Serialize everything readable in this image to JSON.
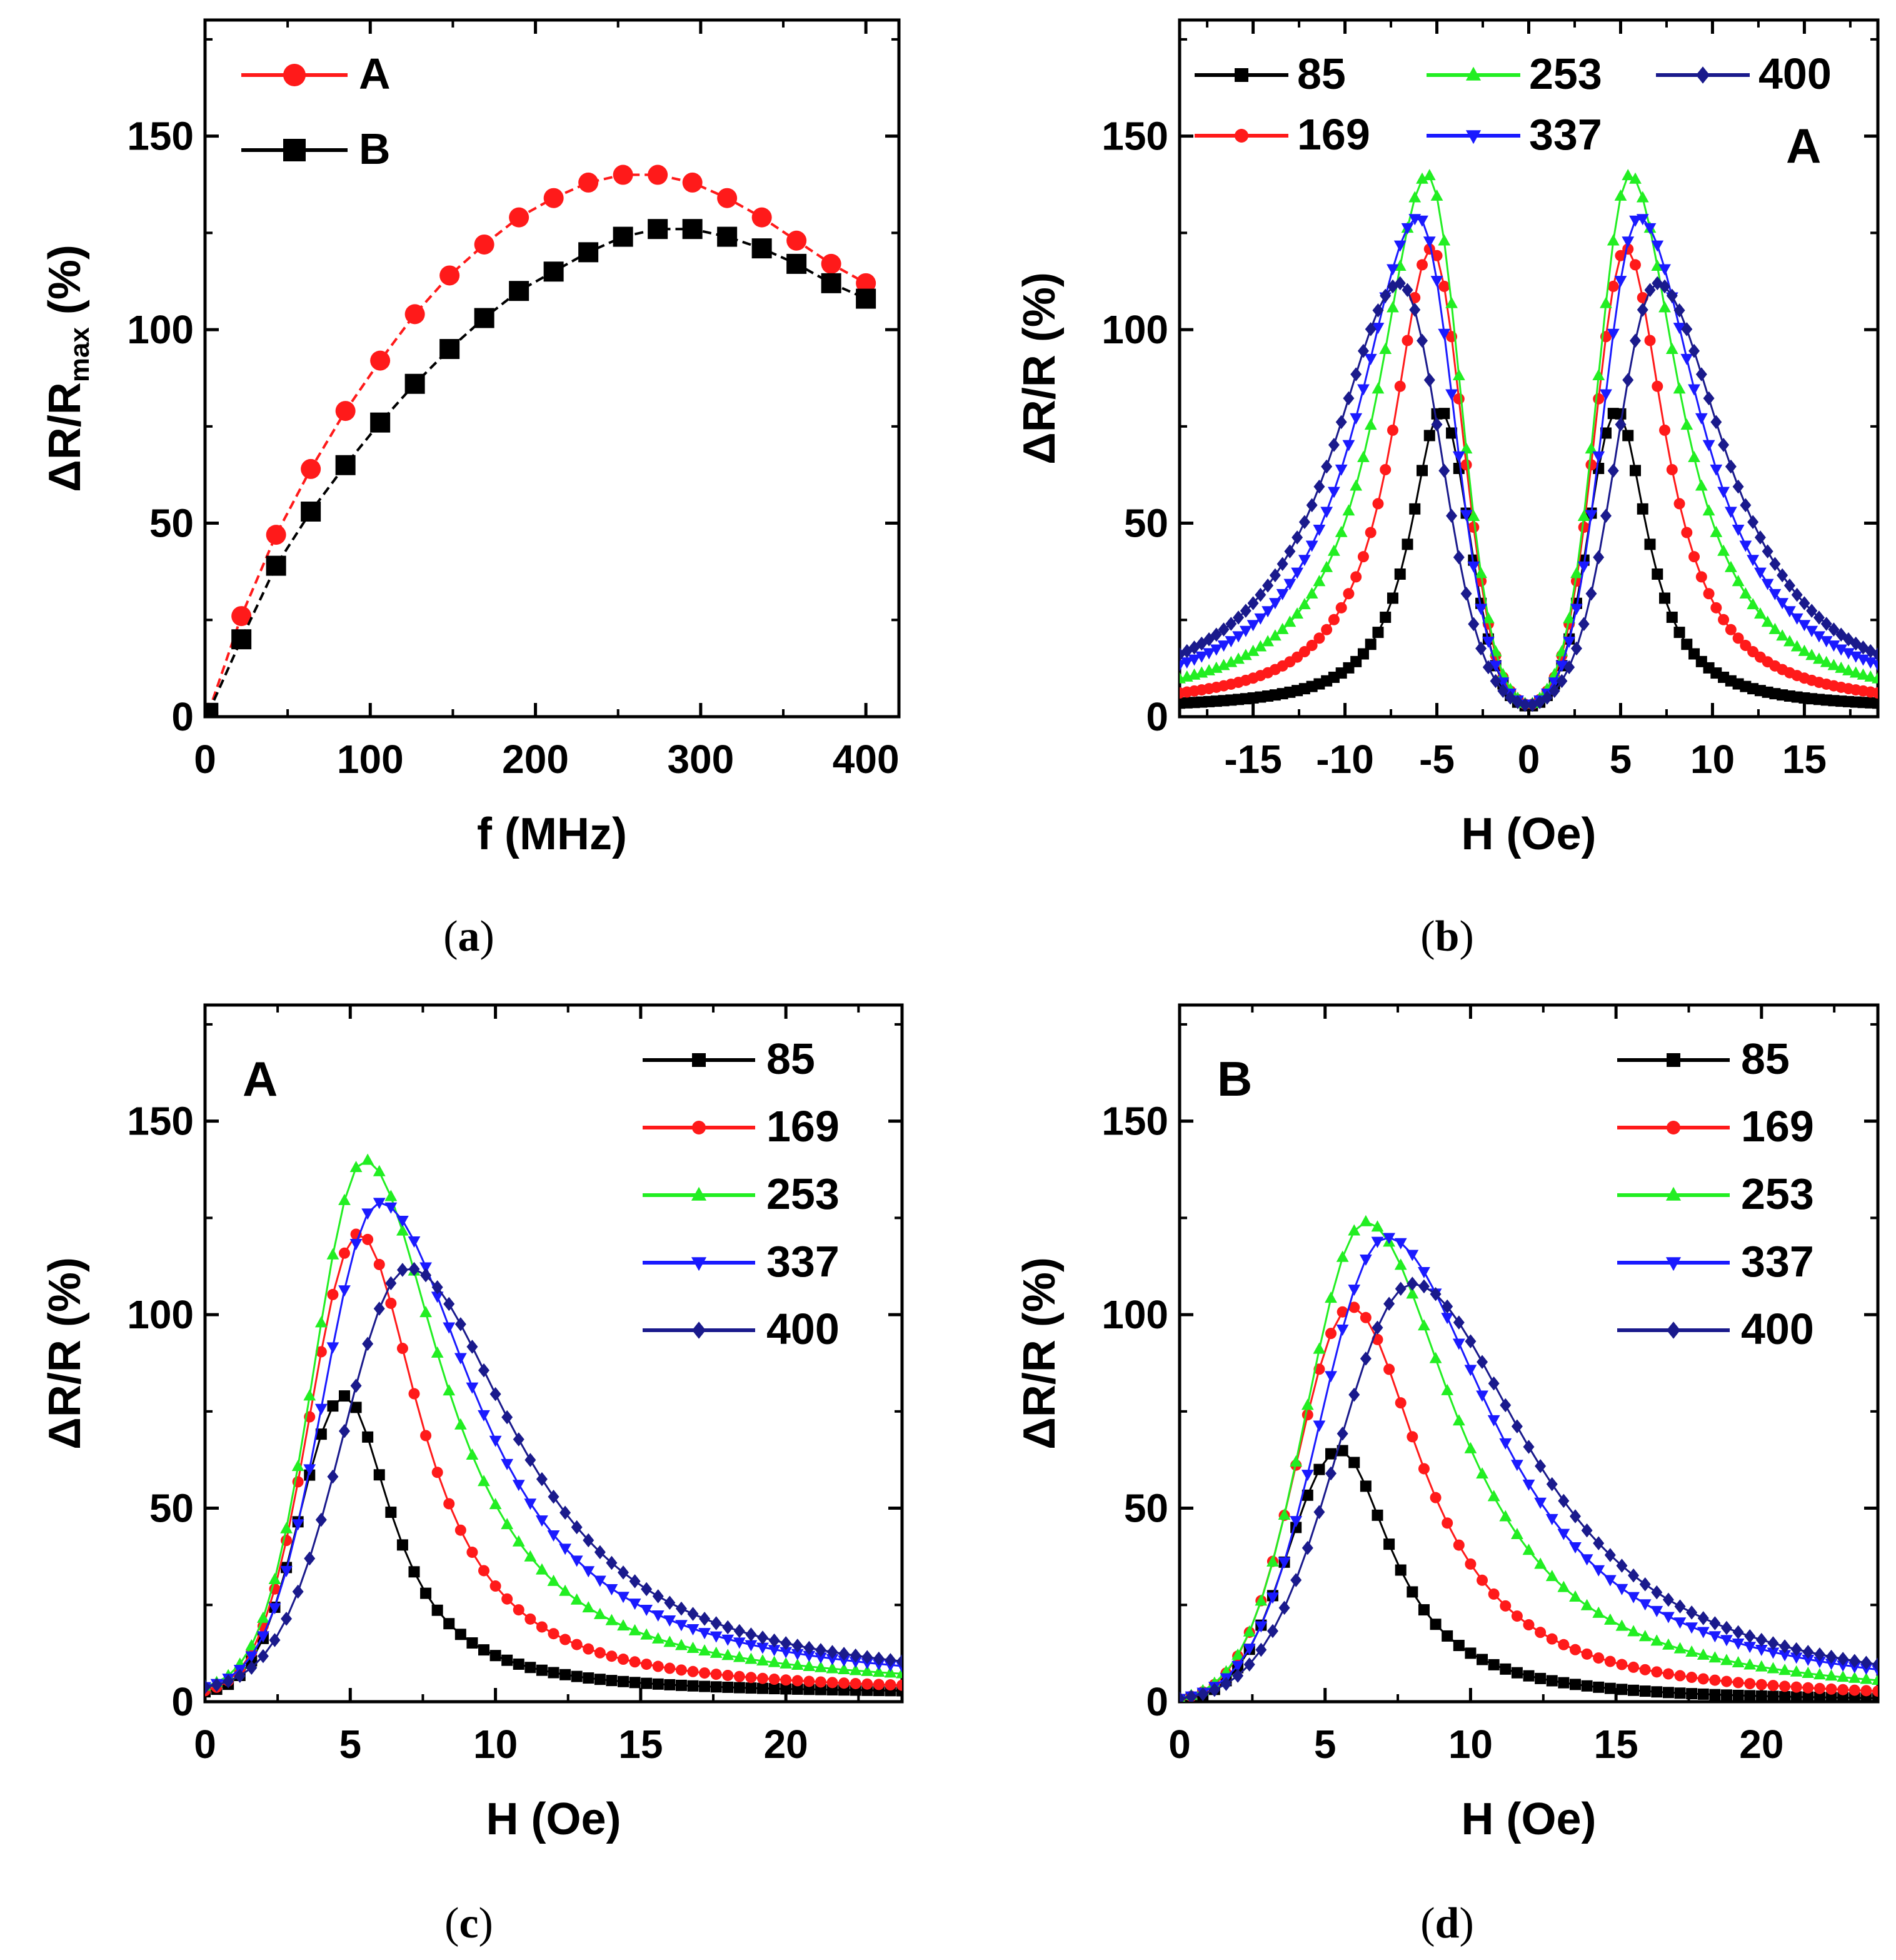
{
  "figure": {
    "captions": [
      "a",
      "b",
      "c",
      "d"
    ]
  },
  "colors": {
    "85": "#000000",
    "169": "#ff1a1a",
    "253": "#22ee22",
    "337": "#1a1aff",
    "400": "#1a1a8c",
    "A": "#ff1a1a",
    "B": "#000000"
  },
  "chart_data": [
    {
      "panel": "a",
      "type": "line",
      "title": "",
      "xlabel": "f (MHz)",
      "ylabel": "ΔR/R",
      "ylabel_sub": "max",
      "ylabel_suffix": " (%)",
      "xlim": [
        0,
        420
      ],
      "ylim": [
        0,
        180
      ],
      "xticks": [
        0,
        100,
        200,
        300,
        400
      ],
      "yticks": [
        0,
        50,
        100,
        150
      ],
      "legend_position": "top-left",
      "x": [
        2,
        22,
        43,
        64,
        85,
        106,
        127,
        148,
        169,
        190,
        211,
        232,
        253,
        274,
        295,
        316,
        337,
        358,
        379,
        400
      ],
      "series": [
        {
          "name": "A",
          "marker": "circle",
          "values": [
            1,
            26,
            47,
            64,
            79,
            92,
            104,
            114,
            122,
            129,
            134,
            138,
            140,
            140,
            138,
            134,
            129,
            123,
            117,
            112
          ]
        },
        {
          "name": "B",
          "marker": "square",
          "values": [
            1,
            20,
            39,
            53,
            65,
            76,
            86,
            95,
            103,
            110,
            115,
            120,
            124,
            126,
            126,
            124,
            121,
            117,
            112,
            108
          ]
        }
      ]
    },
    {
      "panel": "b",
      "type": "scatter",
      "title": "",
      "annotation": "A",
      "xlabel": "H (Oe)",
      "ylabel": "ΔR/R (%)",
      "xlim": [
        -19,
        19
      ],
      "ylim": [
        0,
        180
      ],
      "xticks": [
        -15,
        -10,
        -5,
        0,
        5,
        10,
        15
      ],
      "yticks": [
        0,
        50,
        100,
        150
      ],
      "legend_position": "top",
      "series": [
        {
          "name": "85",
          "marker": "square",
          "peak_h": 4.8,
          "peak_value": 79,
          "min_value": 2,
          "width": 2.0
        },
        {
          "name": "169",
          "marker": "circle",
          "peak_h": 5.3,
          "peak_value": 121,
          "min_value": 2,
          "width": 2.6
        },
        {
          "name": "253",
          "marker": "triangle-up",
          "peak_h": 5.5,
          "peak_value": 140,
          "min_value": 2,
          "width": 3.3
        },
        {
          "name": "337",
          "marker": "triangle-down",
          "peak_h": 6.0,
          "peak_value": 129,
          "min_value": 2,
          "width": 4.1
        },
        {
          "name": "400",
          "marker": "diamond",
          "peak_h": 7.0,
          "peak_value": 112,
          "min_value": 2,
          "width": 4.6
        }
      ]
    },
    {
      "panel": "c",
      "type": "scatter",
      "title": "",
      "annotation": "A",
      "xlabel": "H (Oe)",
      "ylabel": "ΔR/R (%)",
      "xlim": [
        0,
        24
      ],
      "ylim": [
        0,
        180
      ],
      "xticks": [
        0,
        5,
        10,
        15,
        20
      ],
      "yticks": [
        0,
        50,
        100,
        150
      ],
      "legend_position": "top-right",
      "series": [
        {
          "name": "85",
          "marker": "square",
          "peak_h": 4.8,
          "peak_value": 79,
          "min_value": 2,
          "width": 2.0
        },
        {
          "name": "169",
          "marker": "circle",
          "peak_h": 5.3,
          "peak_value": 121,
          "min_value": 2,
          "width": 2.6
        },
        {
          "name": "253",
          "marker": "triangle-up",
          "peak_h": 5.5,
          "peak_value": 140,
          "min_value": 3,
          "width": 3.3
        },
        {
          "name": "337",
          "marker": "triangle-down",
          "peak_h": 6.0,
          "peak_value": 129,
          "min_value": 3,
          "width": 4.1
        },
        {
          "name": "400",
          "marker": "diamond",
          "peak_h": 7.0,
          "peak_value": 112,
          "min_value": 3,
          "width": 4.6
        }
      ]
    },
    {
      "panel": "d",
      "type": "scatter",
      "title": "",
      "annotation": "B",
      "xlabel": "H (Oe)",
      "ylabel": "ΔR/R (%)",
      "xlim": [
        0,
        24
      ],
      "ylim": [
        0,
        180
      ],
      "xticks": [
        0,
        5,
        10,
        15,
        20
      ],
      "yticks": [
        0,
        50,
        100,
        150
      ],
      "legend_position": "top-right",
      "series": [
        {
          "name": "85",
          "marker": "square",
          "peak_h": 5.5,
          "peak_value": 65,
          "min_value": 0,
          "width": 2.2
        },
        {
          "name": "169",
          "marker": "circle",
          "peak_h": 5.9,
          "peak_value": 102,
          "min_value": 0,
          "width": 3.0
        },
        {
          "name": "253",
          "marker": "triangle-up",
          "peak_h": 6.4,
          "peak_value": 124,
          "min_value": 0,
          "width": 3.8
        },
        {
          "name": "337",
          "marker": "triangle-down",
          "peak_h": 7.1,
          "peak_value": 120,
          "min_value": 0,
          "width": 4.6
        },
        {
          "name": "400",
          "marker": "diamond",
          "peak_h": 8.0,
          "peak_value": 108,
          "min_value": 0,
          "width": 5.0
        }
      ]
    }
  ]
}
